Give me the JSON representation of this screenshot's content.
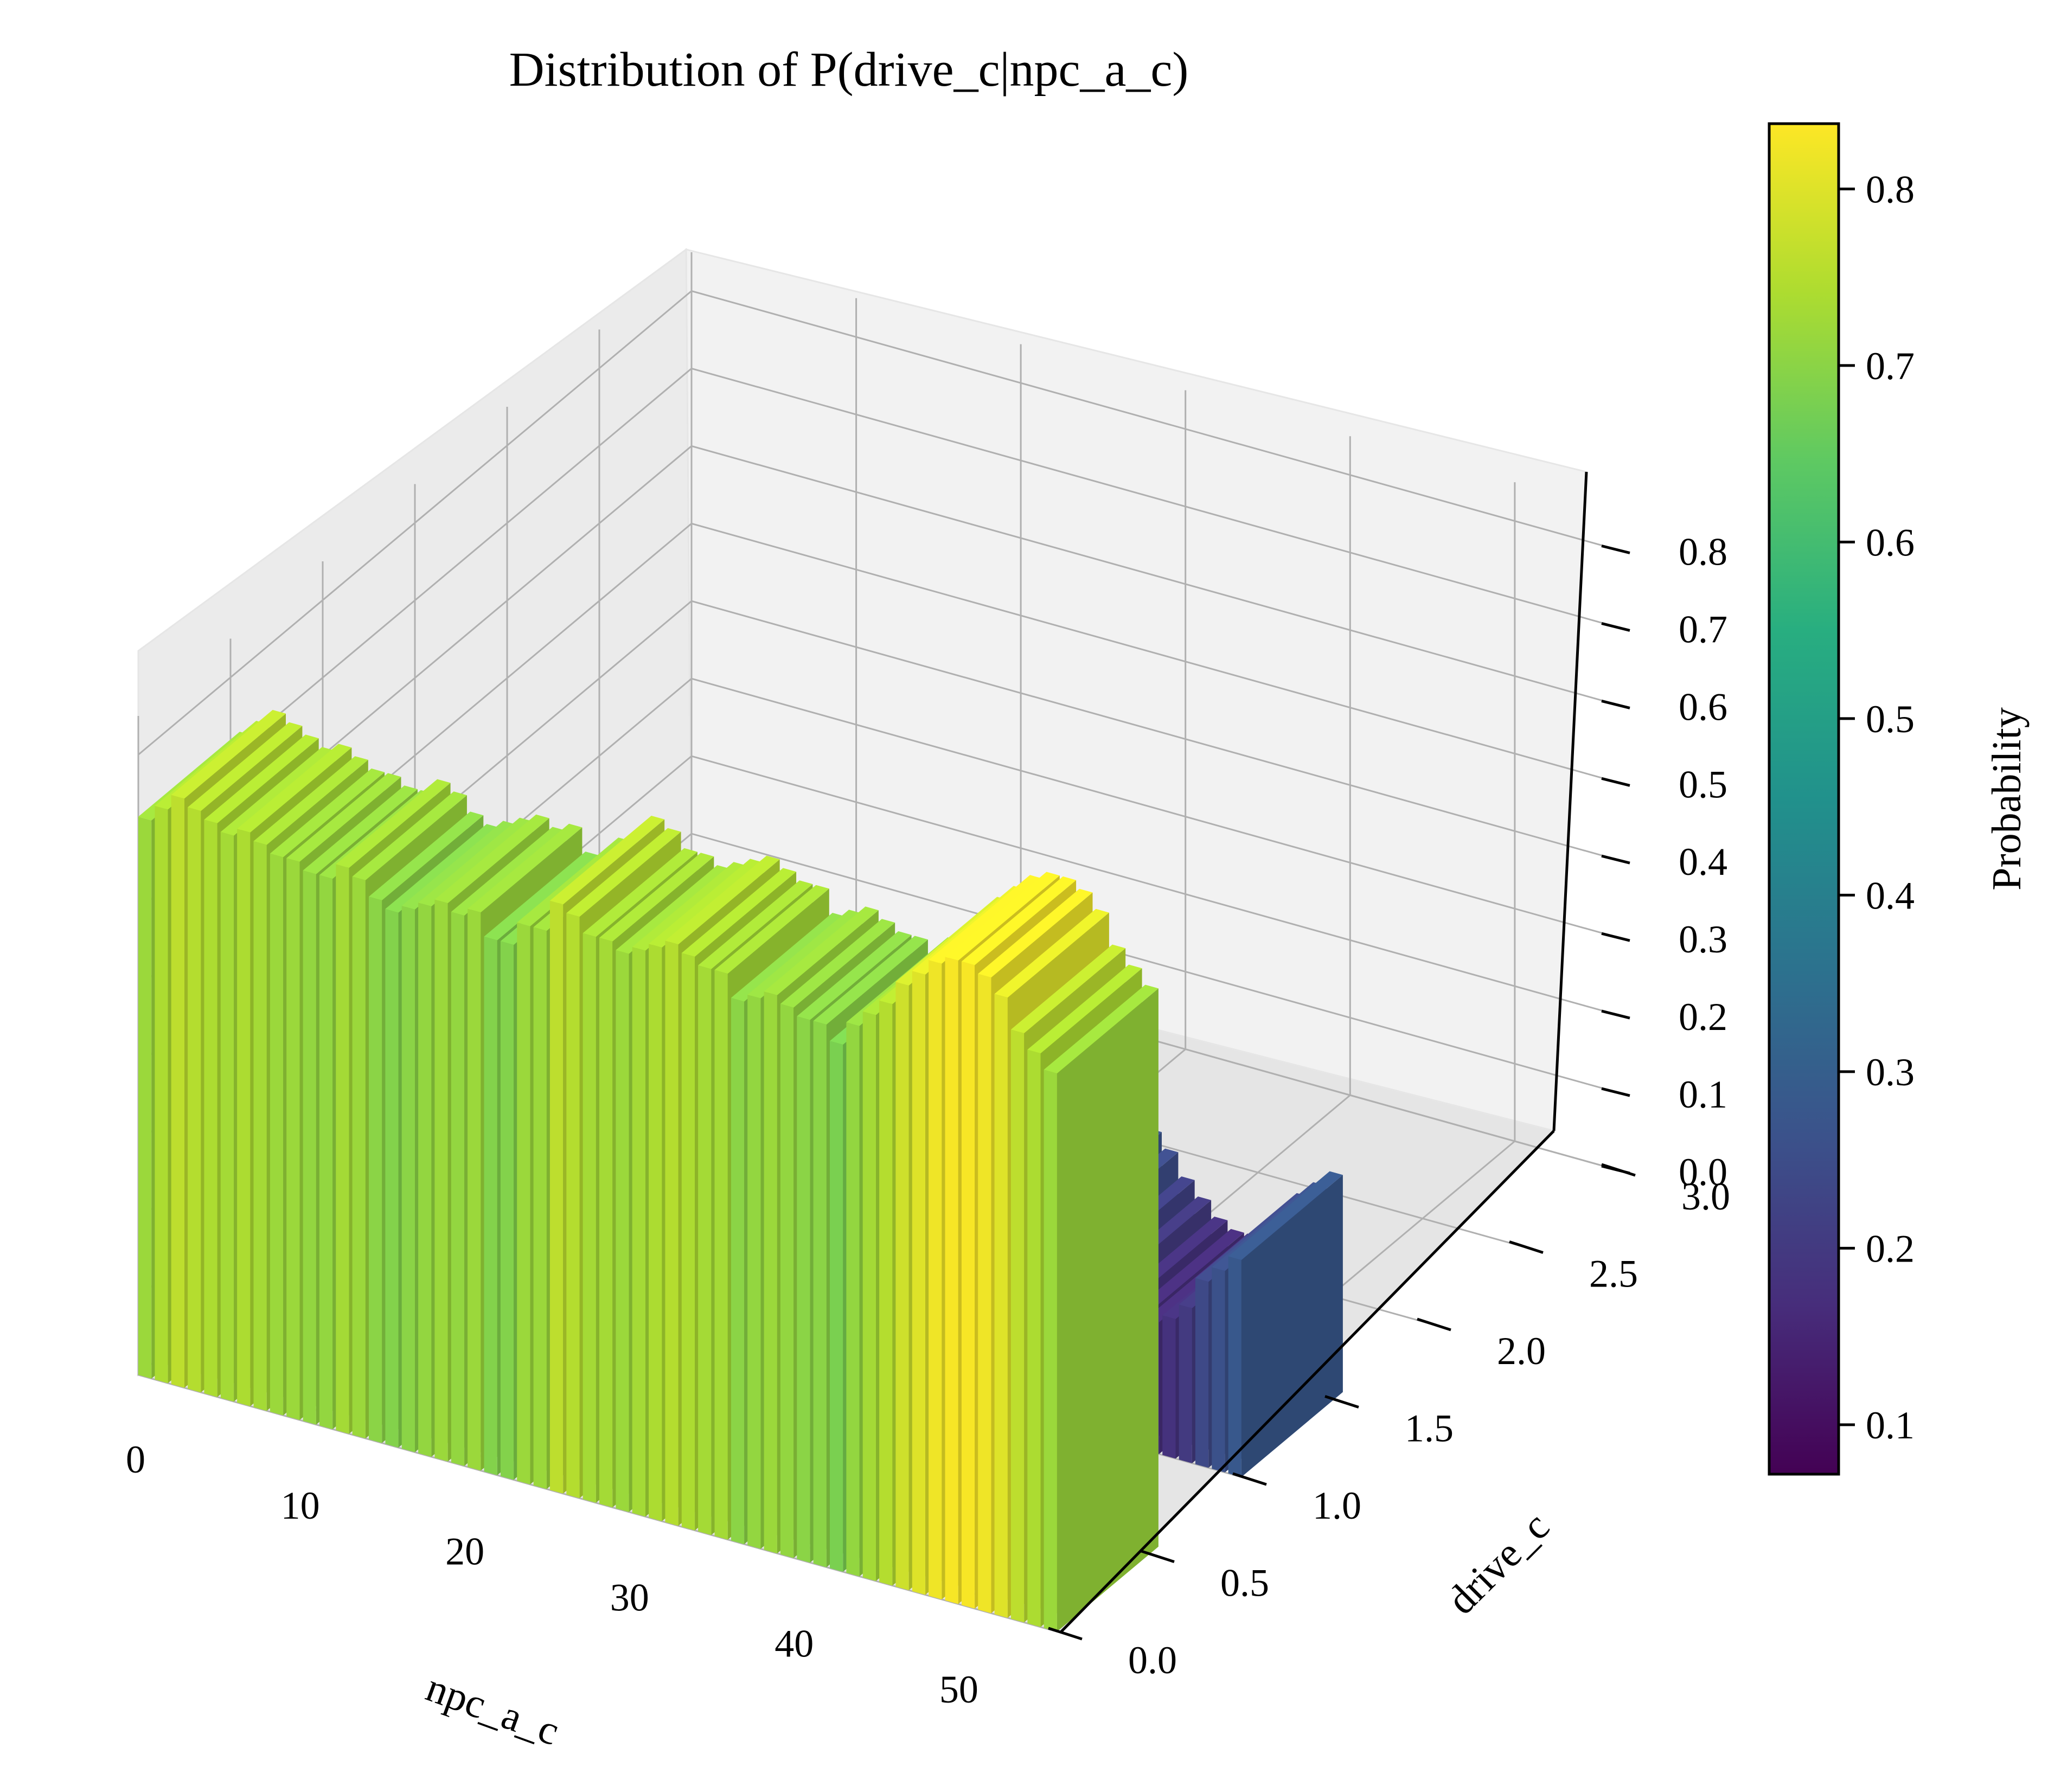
{
  "chart_data": {
    "type": "bar3d",
    "title": "Distribution of P(drive_c|npc_a_c)",
    "xlabel": "npc_a_c",
    "ylabel": "drive_c",
    "zlabel": "",
    "x_ticks": [
      "0",
      "10",
      "20",
      "30",
      "40",
      "50"
    ],
    "y_ticks": [
      "0.0",
      "0.5",
      "1.0",
      "1.5",
      "2.0",
      "2.5",
      "3.0"
    ],
    "z_ticks": [
      "0.0",
      "0.1",
      "0.2",
      "0.3",
      "0.4",
      "0.5",
      "0.6",
      "0.7",
      "0.8"
    ],
    "xlim": [
      0,
      56
    ],
    "ylim": [
      0,
      3
    ],
    "zlim": [
      0,
      0.85
    ],
    "grid": true,
    "colorbar": {
      "label": "Probability",
      "ticks": [
        "0.1",
        "0.2",
        "0.3",
        "0.4",
        "0.5",
        "0.6",
        "0.7",
        "0.8"
      ],
      "range": [
        0.072,
        0.837
      ],
      "colormap": "viridis"
    },
    "series": [
      {
        "drive_c": 0,
        "values": [
          0.72,
          0.74,
          0.76,
          0.75,
          0.74,
          0.73,
          0.74,
          0.73,
          0.72,
          0.72,
          0.71,
          0.71,
          0.73,
          0.72,
          0.7,
          0.69,
          0.7,
          0.71,
          0.72,
          0.71,
          0.72,
          0.69,
          0.69,
          0.72,
          0.72,
          0.76,
          0.75,
          0.73,
          0.73,
          0.72,
          0.73,
          0.74,
          0.75,
          0.74,
          0.73,
          0.73,
          0.7,
          0.71,
          0.72,
          0.71,
          0.7,
          0.7,
          0.68,
          0.71,
          0.73,
          0.75,
          0.78,
          0.8,
          0.82,
          0.83,
          0.83,
          0.82,
          0.8,
          0.76,
          0.74,
          0.72
        ]
      },
      {
        "drive_c": 1,
        "values": [
          0.28,
          0.26,
          0.24,
          0.25,
          0.26,
          0.27,
          0.26,
          0.27,
          0.28,
          0.28,
          0.29,
          0.29,
          0.27,
          0.28,
          0.3,
          0.31,
          0.3,
          0.29,
          0.28,
          0.29,
          0.28,
          0.31,
          0.31,
          0.28,
          0.28,
          0.24,
          0.25,
          0.27,
          0.27,
          0.28,
          0.27,
          0.26,
          0.25,
          0.26,
          0.27,
          0.27,
          0.3,
          0.29,
          0.28,
          0.29,
          0.3,
          0.3,
          0.32,
          0.29,
          0.27,
          0.25,
          0.22,
          0.2,
          0.18,
          0.17,
          0.17,
          0.18,
          0.2,
          0.24,
          0.26,
          0.28
        ]
      }
    ]
  }
}
